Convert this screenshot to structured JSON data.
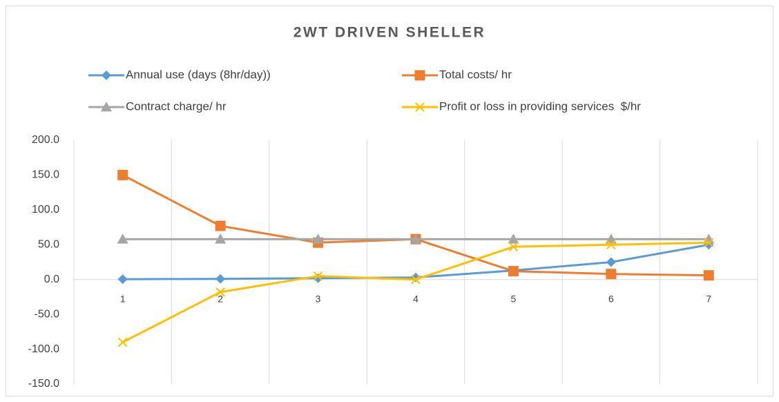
{
  "chart_data": {
    "type": "line",
    "title": "2WT DRIVEN SHELLER",
    "categories": [
      "1",
      "2",
      "3",
      "4",
      "5",
      "6",
      "7"
    ],
    "series": [
      {
        "name": "Annual use (days (8hr/day))",
        "color": "#5b9bd5",
        "marker": "diamond",
        "values": [
          0.5,
          1,
          2,
          3,
          13,
          25,
          50
        ]
      },
      {
        "name": "Total costs/ hr",
        "color": "#ed7d31",
        "marker": "square",
        "values": [
          150,
          77,
          53,
          58,
          12,
          8,
          6
        ]
      },
      {
        "name": "Contract charge/ hr",
        "color": "#a5a5a5",
        "marker": "triangle",
        "values": [
          58,
          58,
          58,
          58,
          58,
          58,
          58
        ]
      },
      {
        "name": "Profit or loss in providing services  $/hr",
        "color": "#ffc000",
        "marker": "x",
        "values": [
          -90,
          -18,
          5,
          0,
          47,
          50,
          53
        ]
      }
    ],
    "ylim": [
      -150,
      200
    ],
    "yticks": [
      {
        "value": -150,
        "label": "-150.0"
      },
      {
        "value": -100,
        "label": "-100.0"
      },
      {
        "value": -50,
        "label": "-50.0"
      },
      {
        "value": 0,
        "label": "0.0"
      },
      {
        "value": 50,
        "label": "50.0"
      },
      {
        "value": 100,
        "label": "100.0"
      },
      {
        "value": 150,
        "label": "150.0"
      },
      {
        "value": 200,
        "label": "200.0"
      }
    ],
    "grid": "x",
    "legend": "top"
  }
}
